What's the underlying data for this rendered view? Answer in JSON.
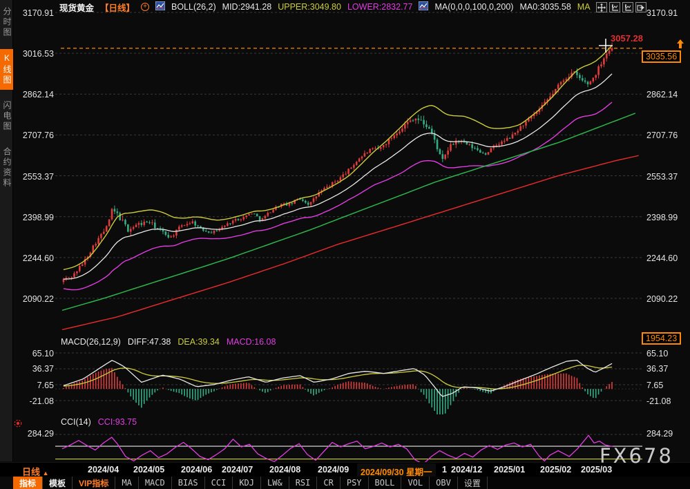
{
  "window": {
    "watermark": "FX678"
  },
  "sidebar": {
    "tabs": [
      {
        "label": "分时图",
        "active": false
      },
      {
        "label": "K线图",
        "active": true
      },
      {
        "label": "闪电图",
        "active": false
      },
      {
        "label": "合约资料",
        "active": false
      }
    ]
  },
  "legend": {
    "symbol": "现货黄金",
    "period_tag": "【日线】",
    "boll": {
      "name": "BOLL(26,2)",
      "mid": "MID:2941.28",
      "upper": "UPPER:3049.80",
      "lower": "LOWER:2832.77"
    },
    "ma": {
      "name": "MA(0,0,0,100,0,200)",
      "ma0": "MA0:3035.58",
      "suffix": "MA"
    }
  },
  "main_axis": {
    "labels": [
      "3170.91",
      "3016.53",
      "2862.14",
      "2707.76",
      "2553.37",
      "2398.99",
      "2244.60",
      "2090.22"
    ],
    "right_labels": [
      "3170.91",
      "2862.14",
      "2707.76",
      "2553.37",
      "2398.99",
      "2244.60",
      "2090.22"
    ],
    "last_price_box": "3035.56",
    "high_marker": "3057.28",
    "bottom_box": "1954.23"
  },
  "macd": {
    "header_name": "MACD(26,12,9)",
    "diff_label": "DIFF:47.38",
    "dea_label": "DEA:39.34",
    "macd_label": "MACD:16.08",
    "axis": [
      "65.10",
      "36.37",
      "7.65",
      "-21.08"
    ]
  },
  "cci": {
    "header_name": "CCI(14)",
    "value_label": "CCI:93.75",
    "axis_top": "284.29"
  },
  "timeline": {
    "period_label": "日线",
    "period_arrow": "▲",
    "ticks": [
      "2024/04",
      "2024/05",
      "2024/06",
      "2024/07",
      "2024/08",
      "2024/09",
      "2024/12",
      "2025/01",
      "2025/02",
      "2025/03"
    ],
    "highlight": "2024/09/30 星期一",
    "highlight_remainder": "1"
  },
  "toolbar": {
    "items": [
      "指标",
      "模板",
      "VIP指标",
      "MA",
      "MACD",
      "BIAS",
      "CCI",
      "KDJ",
      "LW&",
      "RSI",
      "CR",
      "PSY",
      "BOLL",
      "VOL",
      "OBV",
      "设置"
    ]
  },
  "colors": {
    "accent": "#f56a00",
    "up": "#e03c3c",
    "down": "#35ae85",
    "boll_upper": "#cdcd3a",
    "boll_mid": "#e8e8e8",
    "boll_lower": "#e23ce2",
    "ma100": "#2db44c",
    "ma200": "#e02a2a",
    "macd_diff": "#e8e8e8",
    "macd_dea": "#cdcd3a",
    "cci_line": "#e23ce2",
    "grid": "#3a3a3a",
    "last_price": "#ff8a00"
  },
  "chart_data": {
    "type": "candlestick",
    "title": "现货黄金 日线 (Spot Gold Daily)",
    "x_range": [
      "2024/03",
      "2025/03"
    ],
    "price_axis": {
      "gridlines": [
        3170.91,
        3016.53,
        2862.14,
        2707.76,
        2553.37,
        2398.99,
        2244.6,
        2090.22
      ],
      "min_visible": 1954.23,
      "last_price": 3035.56,
      "session_high": 3057.28
    },
    "boll": {
      "period": "26,2",
      "mid": 2941.28,
      "upper": 3049.8,
      "lower": 2832.77
    },
    "close_path": [
      [
        0,
        2160
      ],
      [
        0.019,
        2175
      ],
      [
        0.04,
        2230
      ],
      [
        0.06,
        2300
      ],
      [
        0.08,
        2355
      ],
      [
        0.091,
        2425
      ],
      [
        0.103,
        2400
      ],
      [
        0.119,
        2350
      ],
      [
        0.138,
        2370
      ],
      [
        0.157,
        2380
      ],
      [
        0.175,
        2350
      ],
      [
        0.197,
        2320
      ],
      [
        0.216,
        2365
      ],
      [
        0.236,
        2380
      ],
      [
        0.253,
        2350
      ],
      [
        0.273,
        2340
      ],
      [
        0.291,
        2360
      ],
      [
        0.311,
        2385
      ],
      [
        0.328,
        2395
      ],
      [
        0.345,
        2415
      ],
      [
        0.361,
        2385
      ],
      [
        0.378,
        2420
      ],
      [
        0.396,
        2445
      ],
      [
        0.414,
        2445
      ],
      [
        0.43,
        2470
      ],
      [
        0.449,
        2445
      ],
      [
        0.466,
        2490
      ],
      [
        0.484,
        2515
      ],
      [
        0.501,
        2540
      ],
      [
        0.52,
        2575
      ],
      [
        0.539,
        2620
      ],
      [
        0.558,
        2650
      ],
      [
        0.576,
        2655
      ],
      [
        0.591,
        2685
      ],
      [
        0.608,
        2720
      ],
      [
        0.624,
        2750
      ],
      [
        0.639,
        2775
      ],
      [
        0.654,
        2755
      ],
      [
        0.667,
        2730
      ],
      [
        0.679,
        2670
      ],
      [
        0.689,
        2605
      ],
      [
        0.702,
        2660
      ],
      [
        0.717,
        2690
      ],
      [
        0.736,
        2670
      ],
      [
        0.752,
        2652
      ],
      [
        0.767,
        2635
      ],
      [
        0.784,
        2665
      ],
      [
        0.802,
        2685
      ],
      [
        0.817,
        2705
      ],
      [
        0.835,
        2745
      ],
      [
        0.852,
        2775
      ],
      [
        0.871,
        2815
      ],
      [
        0.89,
        2865
      ],
      [
        0.908,
        2915
      ],
      [
        0.927,
        2945
      ],
      [
        0.944,
        2912
      ],
      [
        0.955,
        2900
      ],
      [
        0.967,
        2935
      ],
      [
        0.98,
        2990
      ],
      [
        0.99,
        3025
      ],
      [
        1,
        3035.56
      ]
    ],
    "volatility": [
      [
        0,
        12
      ],
      [
        0.08,
        16
      ],
      [
        0.1,
        24
      ],
      [
        0.15,
        18
      ],
      [
        0.2,
        14
      ],
      [
        0.3,
        10
      ],
      [
        0.4,
        12
      ],
      [
        0.5,
        13
      ],
      [
        0.6,
        16
      ],
      [
        0.65,
        22
      ],
      [
        0.7,
        18
      ],
      [
        0.78,
        12
      ],
      [
        0.85,
        15
      ],
      [
        0.93,
        20
      ],
      [
        1,
        15
      ]
    ],
    "boll_band_halfwidth": [
      [
        0,
        35
      ],
      [
        0.05,
        55
      ],
      [
        0.1,
        95
      ],
      [
        0.16,
        75
      ],
      [
        0.22,
        45
      ],
      [
        0.28,
        35
      ],
      [
        0.34,
        38
      ],
      [
        0.4,
        35
      ],
      [
        0.46,
        40
      ],
      [
        0.52,
        45
      ],
      [
        0.57,
        65
      ],
      [
        0.62,
        90
      ],
      [
        0.67,
        105
      ],
      [
        0.73,
        95
      ],
      [
        0.78,
        70
      ],
      [
        0.83,
        60
      ],
      [
        0.88,
        75
      ],
      [
        0.93,
        90
      ],
      [
        1,
        108
      ]
    ],
    "ma100": [
      [
        0,
        2045
      ],
      [
        0.075,
        2090
      ],
      [
        0.15,
        2140
      ],
      [
        0.226,
        2190
      ],
      [
        0.301,
        2240
      ],
      [
        0.376,
        2295
      ],
      [
        0.451,
        2350
      ],
      [
        0.526,
        2410
      ],
      [
        0.602,
        2470
      ],
      [
        0.677,
        2530
      ],
      [
        0.752,
        2580
      ],
      [
        0.827,
        2630
      ],
      [
        0.902,
        2680
      ],
      [
        0.977,
        2740
      ],
      [
        1.04,
        2790
      ]
    ],
    "ma200": [
      [
        0,
        1972
      ],
      [
        0.1,
        2020
      ],
      [
        0.2,
        2085
      ],
      [
        0.301,
        2150
      ],
      [
        0.401,
        2220
      ],
      [
        0.501,
        2295
      ],
      [
        0.602,
        2360
      ],
      [
        0.702,
        2425
      ],
      [
        0.802,
        2490
      ],
      [
        0.902,
        2555
      ],
      [
        1.003,
        2610
      ],
      [
        1.046,
        2630
      ]
    ],
    "macd": {
      "params": "26,12,9",
      "last": {
        "diff": 47.38,
        "dea": 39.34,
        "macd": 16.08
      },
      "gridlines": [
        65.1,
        36.37,
        7.65,
        -21.08
      ],
      "diff_path": [
        [
          0,
          5
        ],
        [
          0.038,
          18
        ],
        [
          0.075,
          42
        ],
        [
          0.091,
          52
        ],
        [
          0.113,
          40
        ],
        [
          0.144,
          12
        ],
        [
          0.182,
          25
        ],
        [
          0.213,
          18
        ],
        [
          0.244,
          4
        ],
        [
          0.276,
          8
        ],
        [
          0.307,
          16
        ],
        [
          0.338,
          22
        ],
        [
          0.37,
          12
        ],
        [
          0.401,
          20
        ],
        [
          0.432,
          24
        ],
        [
          0.457,
          12
        ],
        [
          0.489,
          18
        ],
        [
          0.52,
          28
        ],
        [
          0.551,
          32
        ],
        [
          0.583,
          28
        ],
        [
          0.614,
          33
        ],
        [
          0.639,
          37
        ],
        [
          0.658,
          25
        ],
        [
          0.677,
          2
        ],
        [
          0.689,
          -14
        ],
        [
          0.708,
          -8
        ],
        [
          0.727,
          4
        ],
        [
          0.752,
          2
        ],
        [
          0.777,
          -4
        ],
        [
          0.802,
          4
        ],
        [
          0.827,
          14
        ],
        [
          0.858,
          26
        ],
        [
          0.89,
          40
        ],
        [
          0.915,
          50
        ],
        [
          0.934,
          52
        ],
        [
          0.952,
          38
        ],
        [
          0.967,
          30
        ],
        [
          0.983,
          38
        ],
        [
          1,
          47.38
        ]
      ]
    },
    "cci": {
      "period": 14,
      "last": 93.75,
      "top_gridline": 284.29,
      "upper_level": 100,
      "lower_level": -100,
      "path": [
        [
          0,
          60
        ],
        [
          0.015,
          120
        ],
        [
          0.03,
          190
        ],
        [
          0.045,
          110
        ],
        [
          0.06,
          40
        ],
        [
          0.075,
          150
        ],
        [
          0.09,
          240
        ],
        [
          0.1,
          140
        ],
        [
          0.115,
          -60
        ],
        [
          0.13,
          -130
        ],
        [
          0.145,
          -40
        ],
        [
          0.16,
          30
        ],
        [
          0.175,
          -80
        ],
        [
          0.19,
          -20
        ],
        [
          0.205,
          80
        ],
        [
          0.22,
          160
        ],
        [
          0.235,
          60
        ],
        [
          0.25,
          -60
        ],
        [
          0.265,
          -110
        ],
        [
          0.28,
          -30
        ],
        [
          0.295,
          60
        ],
        [
          0.31,
          210
        ],
        [
          0.325,
          90
        ],
        [
          0.34,
          130
        ],
        [
          0.355,
          -20
        ],
        [
          0.37,
          -90
        ],
        [
          0.385,
          -140
        ],
        [
          0.4,
          -40
        ],
        [
          0.415,
          70
        ],
        [
          0.43,
          140
        ],
        [
          0.445,
          -30
        ],
        [
          0.46,
          -120
        ],
        [
          0.475,
          20
        ],
        [
          0.49,
          160
        ],
        [
          0.505,
          90
        ],
        [
          0.52,
          140
        ],
        [
          0.535,
          180
        ],
        [
          0.55,
          60
        ],
        [
          0.565,
          100
        ],
        [
          0.58,
          150
        ],
        [
          0.595,
          90
        ],
        [
          0.61,
          130
        ],
        [
          0.625,
          60
        ],
        [
          0.64,
          -110
        ],
        [
          0.655,
          -180
        ],
        [
          0.67,
          -60
        ],
        [
          0.685,
          30
        ],
        [
          0.7,
          -40
        ],
        [
          0.715,
          -90
        ],
        [
          0.73,
          -10
        ],
        [
          0.745,
          -70
        ],
        [
          0.76,
          40
        ],
        [
          0.775,
          110
        ],
        [
          0.79,
          50
        ],
        [
          0.805,
          120
        ],
        [
          0.82,
          150
        ],
        [
          0.835,
          90
        ],
        [
          0.85,
          130
        ],
        [
          0.865,
          -50
        ],
        [
          0.875,
          -130
        ],
        [
          0.885,
          -40
        ],
        [
          0.9,
          30
        ],
        [
          0.92,
          -60
        ],
        [
          0.935,
          60
        ],
        [
          0.955,
          270
        ],
        [
          0.965,
          150
        ],
        [
          0.975,
          180
        ],
        [
          0.985,
          120
        ],
        [
          1,
          93.75
        ]
      ]
    }
  }
}
